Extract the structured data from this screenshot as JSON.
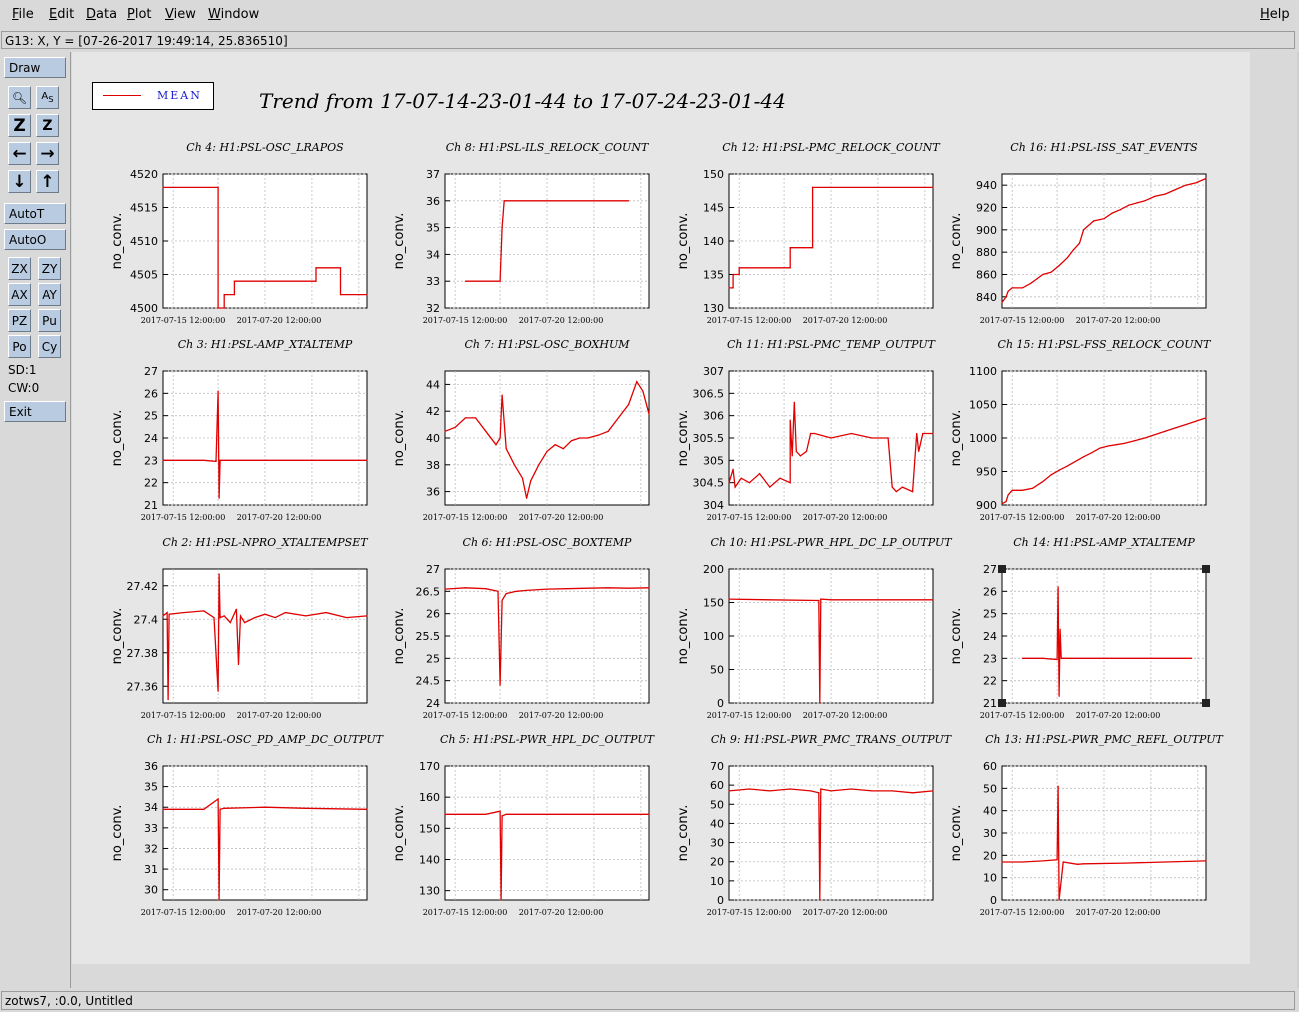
{
  "menubar": {
    "items": [
      {
        "label": "File",
        "key": "F"
      },
      {
        "label": "Edit",
        "key": "E"
      },
      {
        "label": "Data",
        "key": "D"
      },
      {
        "label": "Plot",
        "key": "P"
      },
      {
        "label": "View",
        "key": "V"
      },
      {
        "label": "Window",
        "key": "W"
      }
    ],
    "help": {
      "label": "Help",
      "key": "H"
    }
  },
  "coord_readout": "G13: X, Y = [07-26-2017 19:49:14, 25.836510]",
  "toolbox": {
    "draw": "Draw",
    "autoT": "AutoT",
    "autoO": "AutoO",
    "zx": "ZX",
    "zy": "ZY",
    "ax": "AX",
    "ay": "AY",
    "pz": "PZ",
    "pu": "Pu",
    "po": "Po",
    "cy": "Cy",
    "sd": "SD:1",
    "cw": "CW:0",
    "exit": "Exit",
    "icons": [
      "magnify-icon",
      "abs-text-icon",
      "zoom-z-icon",
      "zoom-z-small-icon",
      "arrow-left-icon",
      "arrow-right-icon",
      "arrow-down-icon",
      "arrow-up-icon"
    ]
  },
  "legend": {
    "label": "MEAN",
    "line_color": "#e00000",
    "text_color": "#1a1acc"
  },
  "title": "Trend from 17-07-14-23-01-44 to 17-07-24-23-01-44",
  "status": "zotws7, :0.0, Untitled",
  "chart_data": [
    {
      "type": "line",
      "title": "Ch 4: H1:PSL-OSC_LRAPOS",
      "ylabel": "no_conv.",
      "ylim": [
        4500,
        4520
      ],
      "yticks": [
        4500,
        4505,
        4510,
        4515,
        4520
      ],
      "xticks": [
        "2017-07-15 12:00:00",
        "2017-07-20 12:00:00"
      ],
      "grid": true,
      "color": "#e00000",
      "x": [
        0,
        0.27,
        0.27,
        0.3,
        0.3,
        0.35,
        0.35,
        0.75,
        0.75,
        0.87,
        0.87,
        1
      ],
      "y": [
        4518,
        4518,
        4500,
        4500,
        4502,
        4502,
        4504,
        4504,
        4506,
        4506,
        4502,
        4502
      ]
    },
    {
      "type": "line",
      "title": "Ch 8: H1:PSL-ILS_RELOCK_COUNT",
      "ylabel": "no_conv.",
      "ylim": [
        32,
        37
      ],
      "yticks": [
        32,
        33,
        34,
        35,
        36,
        37
      ],
      "xticks": [
        "2017-07-15 12:00:00",
        "2017-07-20 12:00:00"
      ],
      "grid": true,
      "color": "#e00000",
      "x": [
        0.1,
        0.27,
        0.28,
        0.29,
        0.9
      ],
      "y": [
        33,
        33,
        35,
        36,
        36
      ]
    },
    {
      "type": "line",
      "title": "Ch 12: H1:PSL-PMC_RELOCK_COUNT",
      "ylabel": "no_conv.",
      "ylim": [
        130,
        150
      ],
      "yticks": [
        130,
        135,
        140,
        145,
        150
      ],
      "xticks": [
        "2017-07-15 12:00:00",
        "2017-07-20 12:00:00"
      ],
      "grid": true,
      "color": "#e00000",
      "x": [
        0,
        0.02,
        0.02,
        0.05,
        0.05,
        0.3,
        0.3,
        0.37,
        0.37,
        0.41,
        0.41,
        1
      ],
      "y": [
        133,
        133,
        135,
        135,
        136,
        136,
        139,
        139,
        139,
        139,
        148,
        148
      ]
    },
    {
      "type": "line",
      "title": "Ch 16: H1:PSL-ISS_SAT_EVENTS",
      "ylabel": "no_conv.",
      "ylim": [
        830,
        950
      ],
      "yticks": [
        840,
        860,
        880,
        900,
        920,
        940
      ],
      "xticks": [
        "2017-07-15 12:00:00",
        "2017-07-20 12:00:00"
      ],
      "grid": true,
      "color": "#e00000",
      "x": [
        0,
        0.02,
        0.03,
        0.05,
        0.1,
        0.14,
        0.17,
        0.2,
        0.24,
        0.28,
        0.32,
        0.35,
        0.38,
        0.4,
        0.45,
        0.5,
        0.54,
        0.58,
        0.62,
        0.66,
        0.7,
        0.75,
        0.8,
        0.85,
        0.9,
        0.95,
        1
      ],
      "y": [
        835,
        840,
        845,
        848,
        848,
        852,
        856,
        860,
        862,
        868,
        875,
        882,
        888,
        900,
        908,
        910,
        915,
        918,
        922,
        924,
        926,
        930,
        932,
        936,
        940,
        942,
        946
      ]
    },
    {
      "type": "line",
      "title": "Ch 3: H1:PSL-AMP_XTALTEMP",
      "ylabel": "no_conv.",
      "ylim": [
        21,
        27
      ],
      "yticks": [
        21,
        22,
        23,
        24,
        25,
        26,
        27
      ],
      "xticks": [
        "2017-07-15 12:00:00",
        "2017-07-20 12:00:00"
      ],
      "grid": true,
      "color": "#e00000",
      "x": [
        0,
        0.2,
        0.26,
        0.27,
        0.275,
        0.28,
        0.3,
        0.5,
        1
      ],
      "y": [
        23,
        23,
        22.95,
        26.1,
        21.3,
        23,
        23,
        23,
        23
      ]
    },
    {
      "type": "line",
      "title": "Ch 7: H1:PSL-OSC_BOXHUM",
      "ylabel": "no_conv.",
      "ylim": [
        35,
        45
      ],
      "yticks": [
        36,
        38,
        40,
        42,
        44
      ],
      "xticks": [
        "2017-07-15 12:00:00",
        "2017-07-20 12:00:00"
      ],
      "grid": true,
      "color": "#e00000",
      "x": [
        0,
        0.05,
        0.1,
        0.15,
        0.2,
        0.25,
        0.27,
        0.28,
        0.3,
        0.34,
        0.38,
        0.4,
        0.42,
        0.46,
        0.5,
        0.54,
        0.58,
        0.62,
        0.66,
        0.7,
        0.75,
        0.8,
        0.85,
        0.9,
        0.94,
        0.97,
        1
      ],
      "y": [
        40.5,
        40.8,
        41.5,
        41.5,
        40.5,
        39.5,
        40,
        43.2,
        39.2,
        38,
        37,
        35.5,
        36.8,
        38,
        39,
        39.5,
        39.2,
        39.8,
        40,
        40,
        40.2,
        40.5,
        41.5,
        42.5,
        44.2,
        43.5,
        41.8
      ]
    },
    {
      "type": "line",
      "title": "Ch 11: H1:PSL-PMC_TEMP_OUTPUT",
      "ylabel": "no_conv.",
      "ylim": [
        304,
        307
      ],
      "yticks": [
        304,
        304.5,
        305,
        305.5,
        306,
        306.5,
        307
      ],
      "xticks": [
        "2017-07-15 12:00:00",
        "2017-07-20 12:00:00"
      ],
      "grid": true,
      "color": "#e00000",
      "x": [
        0,
        0.02,
        0.03,
        0.06,
        0.1,
        0.15,
        0.2,
        0.25,
        0.3,
        0.3,
        0.31,
        0.32,
        0.33,
        0.35,
        0.38,
        0.4,
        0.42,
        0.5,
        0.6,
        0.7,
        0.78,
        0.8,
        0.82,
        0.85,
        0.9,
        0.92,
        0.93,
        0.95,
        1
      ],
      "y": [
        304.5,
        304.8,
        304.4,
        304.6,
        304.5,
        304.7,
        304.4,
        304.6,
        304.5,
        305.9,
        305.1,
        306.3,
        305.2,
        305.1,
        305.2,
        305.6,
        305.6,
        305.5,
        305.6,
        305.5,
        305.5,
        304.4,
        304.3,
        304.4,
        304.3,
        305.6,
        305.2,
        305.6,
        305.6
      ]
    },
    {
      "type": "line",
      "title": "Ch 15: H1:PSL-FSS_RELOCK_COUNT",
      "ylabel": "no_conv.",
      "ylim": [
        900,
        1100
      ],
      "yticks": [
        900,
        950,
        1000,
        1050,
        1100
      ],
      "xticks": [
        "2017-07-15 12:00:00",
        "2017-07-20 12:00:00"
      ],
      "grid": true,
      "color": "#e00000",
      "x": [
        0,
        0.02,
        0.03,
        0.05,
        0.1,
        0.15,
        0.2,
        0.24,
        0.28,
        0.32,
        0.36,
        0.4,
        0.44,
        0.48,
        0.52,
        0.56,
        0.6,
        0.65,
        0.7,
        0.75,
        0.8,
        0.85,
        0.9,
        0.95,
        1
      ],
      "y": [
        902,
        905,
        915,
        922,
        922,
        925,
        935,
        945,
        952,
        958,
        965,
        972,
        978,
        985,
        988,
        990,
        992,
        996,
        1000,
        1005,
        1010,
        1015,
        1020,
        1025,
        1030
      ]
    },
    {
      "type": "line",
      "title": "Ch 2: H1:PSL-NPRO_XTALTEMPSET",
      "ylabel": "no_conv.",
      "ylim": [
        27.35,
        27.43
      ],
      "yticks": [
        27.36,
        27.38,
        27.4,
        27.42
      ],
      "xticks": [
        "2017-07-15 12:00:00",
        "2017-07-20 12:00:00"
      ],
      "grid": true,
      "color": "#e00000",
      "x": [
        0,
        0.02,
        0.025,
        0.03,
        0.1,
        0.2,
        0.25,
        0.27,
        0.275,
        0.28,
        0.3,
        0.33,
        0.36,
        0.37,
        0.38,
        0.4,
        0.45,
        0.5,
        0.55,
        0.6,
        0.7,
        0.8,
        0.9,
        1
      ],
      "y": [
        27.402,
        27.404,
        27.352,
        27.403,
        27.404,
        27.405,
        27.401,
        27.357,
        27.427,
        27.401,
        27.402,
        27.398,
        27.406,
        27.373,
        27.402,
        27.398,
        27.401,
        27.403,
        27.401,
        27.404,
        27.402,
        27.404,
        27.401,
        27.402
      ]
    },
    {
      "type": "line",
      "title": "Ch 6: H1:PSL-OSC_BOXTEMP",
      "ylabel": "no_conv.",
      "ylim": [
        24,
        27
      ],
      "yticks": [
        24,
        24.5,
        25,
        25.5,
        26,
        26.5,
        27
      ],
      "xticks": [
        "2017-07-15 12:00:00",
        "2017-07-20 12:00:00"
      ],
      "grid": true,
      "color": "#e00000",
      "x": [
        0,
        0.1,
        0.2,
        0.26,
        0.27,
        0.28,
        0.3,
        0.35,
        0.4,
        0.5,
        0.6,
        0.7,
        0.8,
        0.9,
        1
      ],
      "y": [
        26.55,
        26.58,
        26.56,
        26.5,
        24.4,
        26.3,
        26.45,
        26.5,
        26.52,
        26.55,
        26.56,
        26.57,
        26.58,
        26.57,
        26.58
      ]
    },
    {
      "type": "line",
      "title": "Ch 10: H1:PSL-PWR_HPL_DC_LP_OUTPUT",
      "ylabel": "no_conv.",
      "ylim": [
        0,
        200
      ],
      "yticks": [
        0,
        50,
        100,
        150,
        200
      ],
      "xticks": [
        "2017-07-15 12:00:00",
        "2017-07-20 12:00:00"
      ],
      "grid": true,
      "color": "#e00000",
      "x": [
        0,
        0.2,
        0.44,
        0.445,
        0.45,
        0.5,
        0.7,
        1
      ],
      "y": [
        155,
        154,
        153,
        0,
        155,
        154,
        154,
        154
      ]
    },
    {
      "type": "line",
      "title": "Ch 14: H1:PSL-AMP_XTALTEMP",
      "ylabel": "no_conv.",
      "ylim": [
        21,
        27
      ],
      "yticks": [
        21,
        22,
        23,
        24,
        25,
        26,
        27
      ],
      "xticks": [
        "2017-07-15 12:00:00",
        "2017-07-20 12:00:00"
      ],
      "grid": true,
      "color": "#e00000",
      "x": [
        0.1,
        0.2,
        0.27,
        0.275,
        0.28,
        0.285,
        0.29,
        0.3,
        0.5,
        0.93
      ],
      "y": [
        23,
        23,
        22.95,
        26.2,
        21.3,
        24.3,
        23,
        23,
        23,
        23
      ]
    },
    {
      "type": "line",
      "title": "Ch 1: H1:PSL-OSC_PD_AMP_DC_OUTPUT",
      "ylabel": "no_conv.",
      "ylim": [
        29.5,
        36
      ],
      "yticks": [
        30,
        31,
        32,
        33,
        34,
        35,
        36
      ],
      "xticks": [
        "2017-07-15 12:00:00",
        "2017-07-20 12:00:00"
      ],
      "grid": true,
      "color": "#e00000",
      "x": [
        0,
        0.2,
        0.27,
        0.275,
        0.28,
        0.3,
        0.5,
        0.7,
        1
      ],
      "y": [
        33.9,
        33.9,
        34.4,
        29.5,
        33.9,
        33.95,
        34,
        33.95,
        33.9
      ]
    },
    {
      "type": "line",
      "title": "Ch 5: H1:PSL-PWR_HPL_DC_OUTPUT",
      "ylabel": "no_conv.",
      "ylim": [
        127,
        170
      ],
      "yticks": [
        130,
        140,
        150,
        160,
        170
      ],
      "xticks": [
        "2017-07-15 12:00:00",
        "2017-07-20 12:00:00"
      ],
      "grid": true,
      "color": "#e00000",
      "x": [
        0,
        0.2,
        0.27,
        0.275,
        0.28,
        0.3,
        0.6,
        1
      ],
      "y": [
        154.5,
        154.5,
        155.5,
        127,
        154,
        154.5,
        154.5,
        154.5
      ]
    },
    {
      "type": "line",
      "title": "Ch 9: H1:PSL-PWR_PMC_TRANS_OUTPUT",
      "ylabel": "no_conv.",
      "ylim": [
        0,
        70
      ],
      "yticks": [
        0,
        10,
        20,
        30,
        40,
        50,
        60,
        70
      ],
      "xticks": [
        "2017-07-15 12:00:00",
        "2017-07-20 12:00:00"
      ],
      "grid": true,
      "color": "#e00000",
      "x": [
        0,
        0.1,
        0.2,
        0.3,
        0.4,
        0.44,
        0.445,
        0.45,
        0.5,
        0.6,
        0.7,
        0.8,
        0.9,
        1
      ],
      "y": [
        57,
        58,
        57,
        58,
        57,
        56,
        0,
        58,
        57,
        58,
        57,
        57,
        56,
        57
      ]
    },
    {
      "type": "line",
      "title": "Ch 13: H1:PSL-PWR_PMC_REFL_OUTPUT",
      "ylabel": "no_conv.",
      "ylim": [
        0,
        60
      ],
      "yticks": [
        0,
        10,
        20,
        30,
        40,
        50,
        60
      ],
      "xticks": [
        "2017-07-15 12:00:00",
        "2017-07-20 12:00:00"
      ],
      "grid": true,
      "color": "#e00000",
      "x": [
        0,
        0.1,
        0.2,
        0.27,
        0.275,
        0.28,
        0.3,
        0.37,
        0.4,
        0.6,
        0.8,
        1
      ],
      "y": [
        17,
        17,
        17.5,
        18,
        51,
        0,
        17,
        16,
        16.2,
        16.5,
        17,
        17.5
      ]
    }
  ]
}
